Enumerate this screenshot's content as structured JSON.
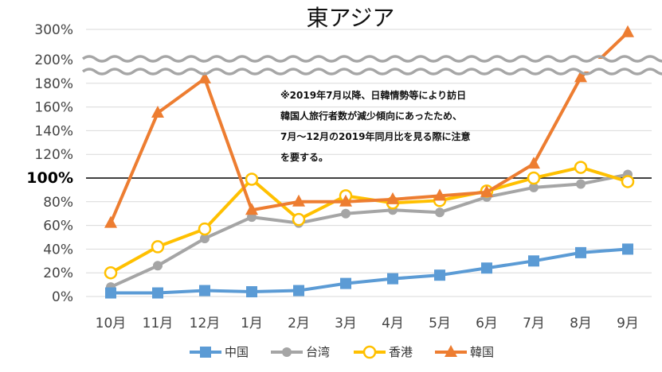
{
  "chart_data": {
    "type": "line",
    "title": "東アジア",
    "categories": [
      "10月",
      "11月",
      "12月",
      "1月",
      "2月",
      "3月",
      "4月",
      "5月",
      "6月",
      "7月",
      "8月",
      "9月"
    ],
    "y_ticks_lower": [
      "0%",
      "20%",
      "40%",
      "60%",
      "80%",
      "100%",
      "120%",
      "140%",
      "160%",
      "180%"
    ],
    "y_ticks_upper": [
      "200%",
      "300%"
    ],
    "axis_break": "180%-200%",
    "reference_line": 100,
    "series": [
      {
        "name": "中国",
        "color": "#5B9BD5",
        "marker": "square",
        "values": [
          3,
          3,
          5,
          4,
          5,
          11,
          15,
          18,
          24,
          30,
          37,
          40
        ]
      },
      {
        "name": "台湾",
        "color": "#A5A5A5",
        "marker": "circle",
        "values": [
          8,
          26,
          49,
          67,
          62,
          70,
          73,
          71,
          84,
          92,
          95,
          103
        ]
      },
      {
        "name": "香港",
        "color": "#FFC000",
        "marker": "circle-open",
        "values": [
          20,
          42,
          57,
          99,
          65,
          85,
          79,
          81,
          89,
          100,
          109,
          97
        ]
      },
      {
        "name": "韓国",
        "color": "#ED7D31",
        "marker": "triangle",
        "values": [
          62,
          155,
          184,
          73,
          80,
          80,
          82,
          85,
          88,
          112,
          185,
          290
        ]
      }
    ],
    "annotation": [
      "※2019年7月以降、日韓情勢等により訪日",
      "韓国人旅行者数が減少傾向にあったため、",
      "7月～12月の2019年同月比を見る際に注意",
      "を要する。"
    ],
    "legend_position": "bottom",
    "grid": true
  }
}
